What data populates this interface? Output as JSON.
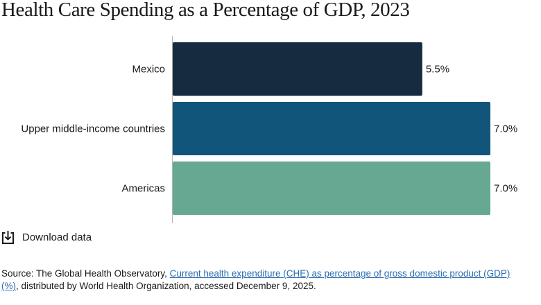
{
  "chart_data": {
    "type": "bar",
    "orientation": "horizontal",
    "title": "Health Care Spending as a Percentage of GDP, 2023",
    "categories": [
      "Mexico",
      "Upper middle-income countries",
      "Americas"
    ],
    "values": [
      5.5,
      7.0,
      7.0
    ],
    "value_labels": [
      "5.5%",
      "7.0%",
      "7.0%"
    ],
    "colors": [
      "#172b40",
      "#12557a",
      "#67a893"
    ],
    "xlim": [
      0,
      7.0
    ],
    "grid": false,
    "legend": "none"
  },
  "download": {
    "label": "Download data",
    "icon": "download-icon"
  },
  "source": {
    "prefix": "Source: The Global Health Observatory, ",
    "link_text": "Current health expenditure (CHE) as percentage of gross domestic product (GDP) (%)",
    "suffix": ", distributed by World Health Organization, accessed December 9, 2025."
  }
}
